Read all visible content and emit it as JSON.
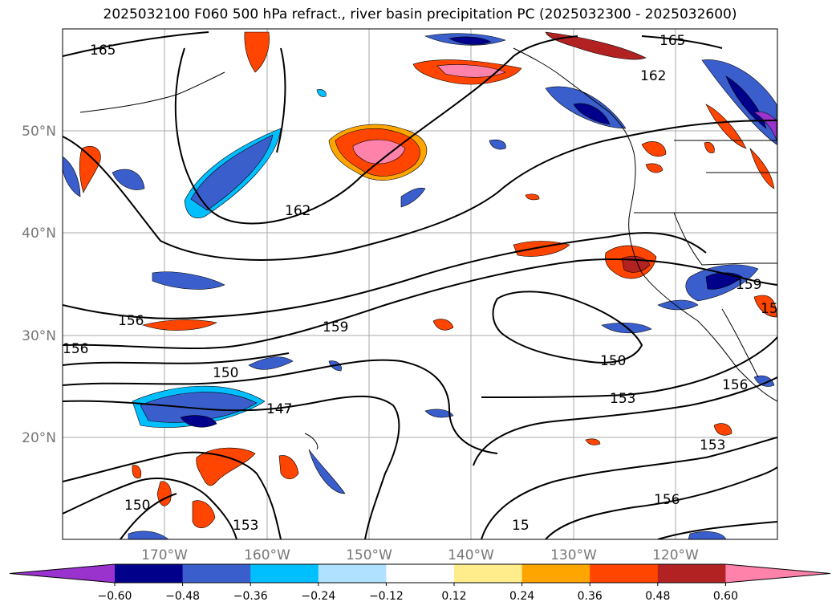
{
  "title": "2025032100 F060 500 hPa refract., river basin precipitation PC (2025032300 - 2025032600)",
  "lat_labels": [
    "50°N",
    "40°N",
    "30°N",
    "20°N"
  ],
  "lon_labels": [
    "170°W",
    "160°W",
    "150°W",
    "140°W",
    "130°W",
    "120°W"
  ],
  "contour_labels": [
    "165",
    "165",
    "162",
    "162",
    "159",
    "159",
    "156",
    "156",
    "156",
    "156",
    "153",
    "153",
    "153",
    "150",
    "150",
    "150",
    "147",
    "15",
    "15"
  ],
  "colorbar": {
    "ticks": [
      "−0.60",
      "−0.48",
      "−0.36",
      "−0.24",
      "−0.12",
      "0.12",
      "0.24",
      "0.36",
      "0.48",
      "0.60"
    ],
    "colors": [
      "#9a32cd",
      "#00008b",
      "#3a5fcd",
      "#00bfff",
      "#b0e2ff",
      "#ffffff",
      "#ffec8b",
      "#ffa500",
      "#ff4500",
      "#b22222",
      "#ff82ab"
    ]
  }
}
